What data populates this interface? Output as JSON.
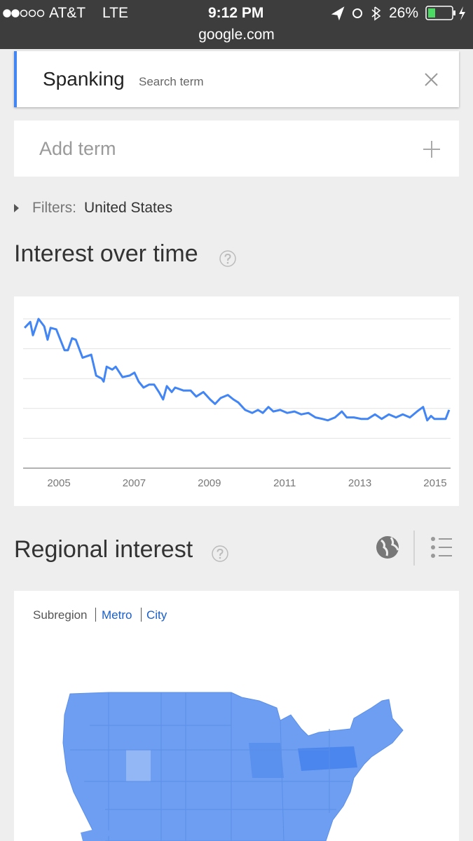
{
  "status_bar": {
    "carrier": "AT&T",
    "network": "LTE",
    "time": "9:12 PM",
    "battery": "26%",
    "url": "google.com"
  },
  "search": {
    "term": "Spanking",
    "term_label": "Search term",
    "add_term": "Add term"
  },
  "filters": {
    "label": "Filters:",
    "value": "United States"
  },
  "chart_data": {
    "type": "line",
    "title": "Interest over time",
    "x": [
      2004.09,
      2004.24,
      2004.31,
      2004.46,
      2004.61,
      2004.7,
      2004.78,
      2004.93,
      2005.15,
      2005.24,
      2005.35,
      2005.45,
      2005.63,
      2005.86,
      2005.99,
      2006.14,
      2006.19,
      2006.27,
      2006.42,
      2006.51,
      2006.69,
      2006.88,
      2007.01,
      2007.12,
      2007.25,
      2007.4,
      2007.53,
      2007.66,
      2007.77,
      2007.87,
      2008.0,
      2008.09,
      2008.31,
      2008.5,
      2008.65,
      2008.84,
      2009.02,
      2009.15,
      2009.3,
      2009.49,
      2009.64,
      2009.77,
      2009.95,
      2010.14,
      2010.29,
      2010.42,
      2010.57,
      2010.7,
      2010.88,
      2011.07,
      2011.26,
      2011.44,
      2011.63,
      2011.82,
      2012.0,
      2012.15,
      2012.34,
      2012.52,
      2012.65,
      2012.84,
      2013.03,
      2013.21,
      2013.4,
      2013.58,
      2013.77,
      2013.96,
      2014.14,
      2014.33,
      2014.52,
      2014.68,
      2014.79,
      2014.89,
      2014.98,
      2015.17,
      2015.28,
      2015.37
    ],
    "series": [
      {
        "color": "#4285f4",
        "values": [
          94,
          98,
          89,
          100,
          95,
          86,
          94,
          93,
          79,
          79,
          87,
          86,
          74,
          76,
          62,
          60,
          58,
          68,
          66,
          68,
          61,
          62,
          64,
          58,
          54,
          56,
          56,
          51,
          46,
          55,
          51,
          54,
          52,
          52,
          48,
          51,
          46,
          43,
          47,
          49,
          46,
          44,
          39,
          37,
          39,
          37,
          41,
          38,
          39,
          37,
          38,
          36,
          37,
          34,
          33,
          32,
          34,
          38,
          34,
          34,
          33,
          33,
          36,
          33,
          36,
          34,
          36,
          34,
          38,
          41,
          32,
          35,
          33,
          33,
          33,
          39
        ]
      }
    ],
    "xlim": [
      2004.05,
      2015.41
    ],
    "ylim": [
      0,
      100
    ],
    "xticks": [
      2005,
      2007,
      2009,
      2011,
      2013,
      2015
    ],
    "yticks": [
      0,
      20,
      40,
      60,
      80,
      100
    ],
    "grid": true
  },
  "regional_interest": {
    "title": "Regional interest",
    "tabs": [
      "Subregion",
      "Metro",
      "City"
    ]
  }
}
